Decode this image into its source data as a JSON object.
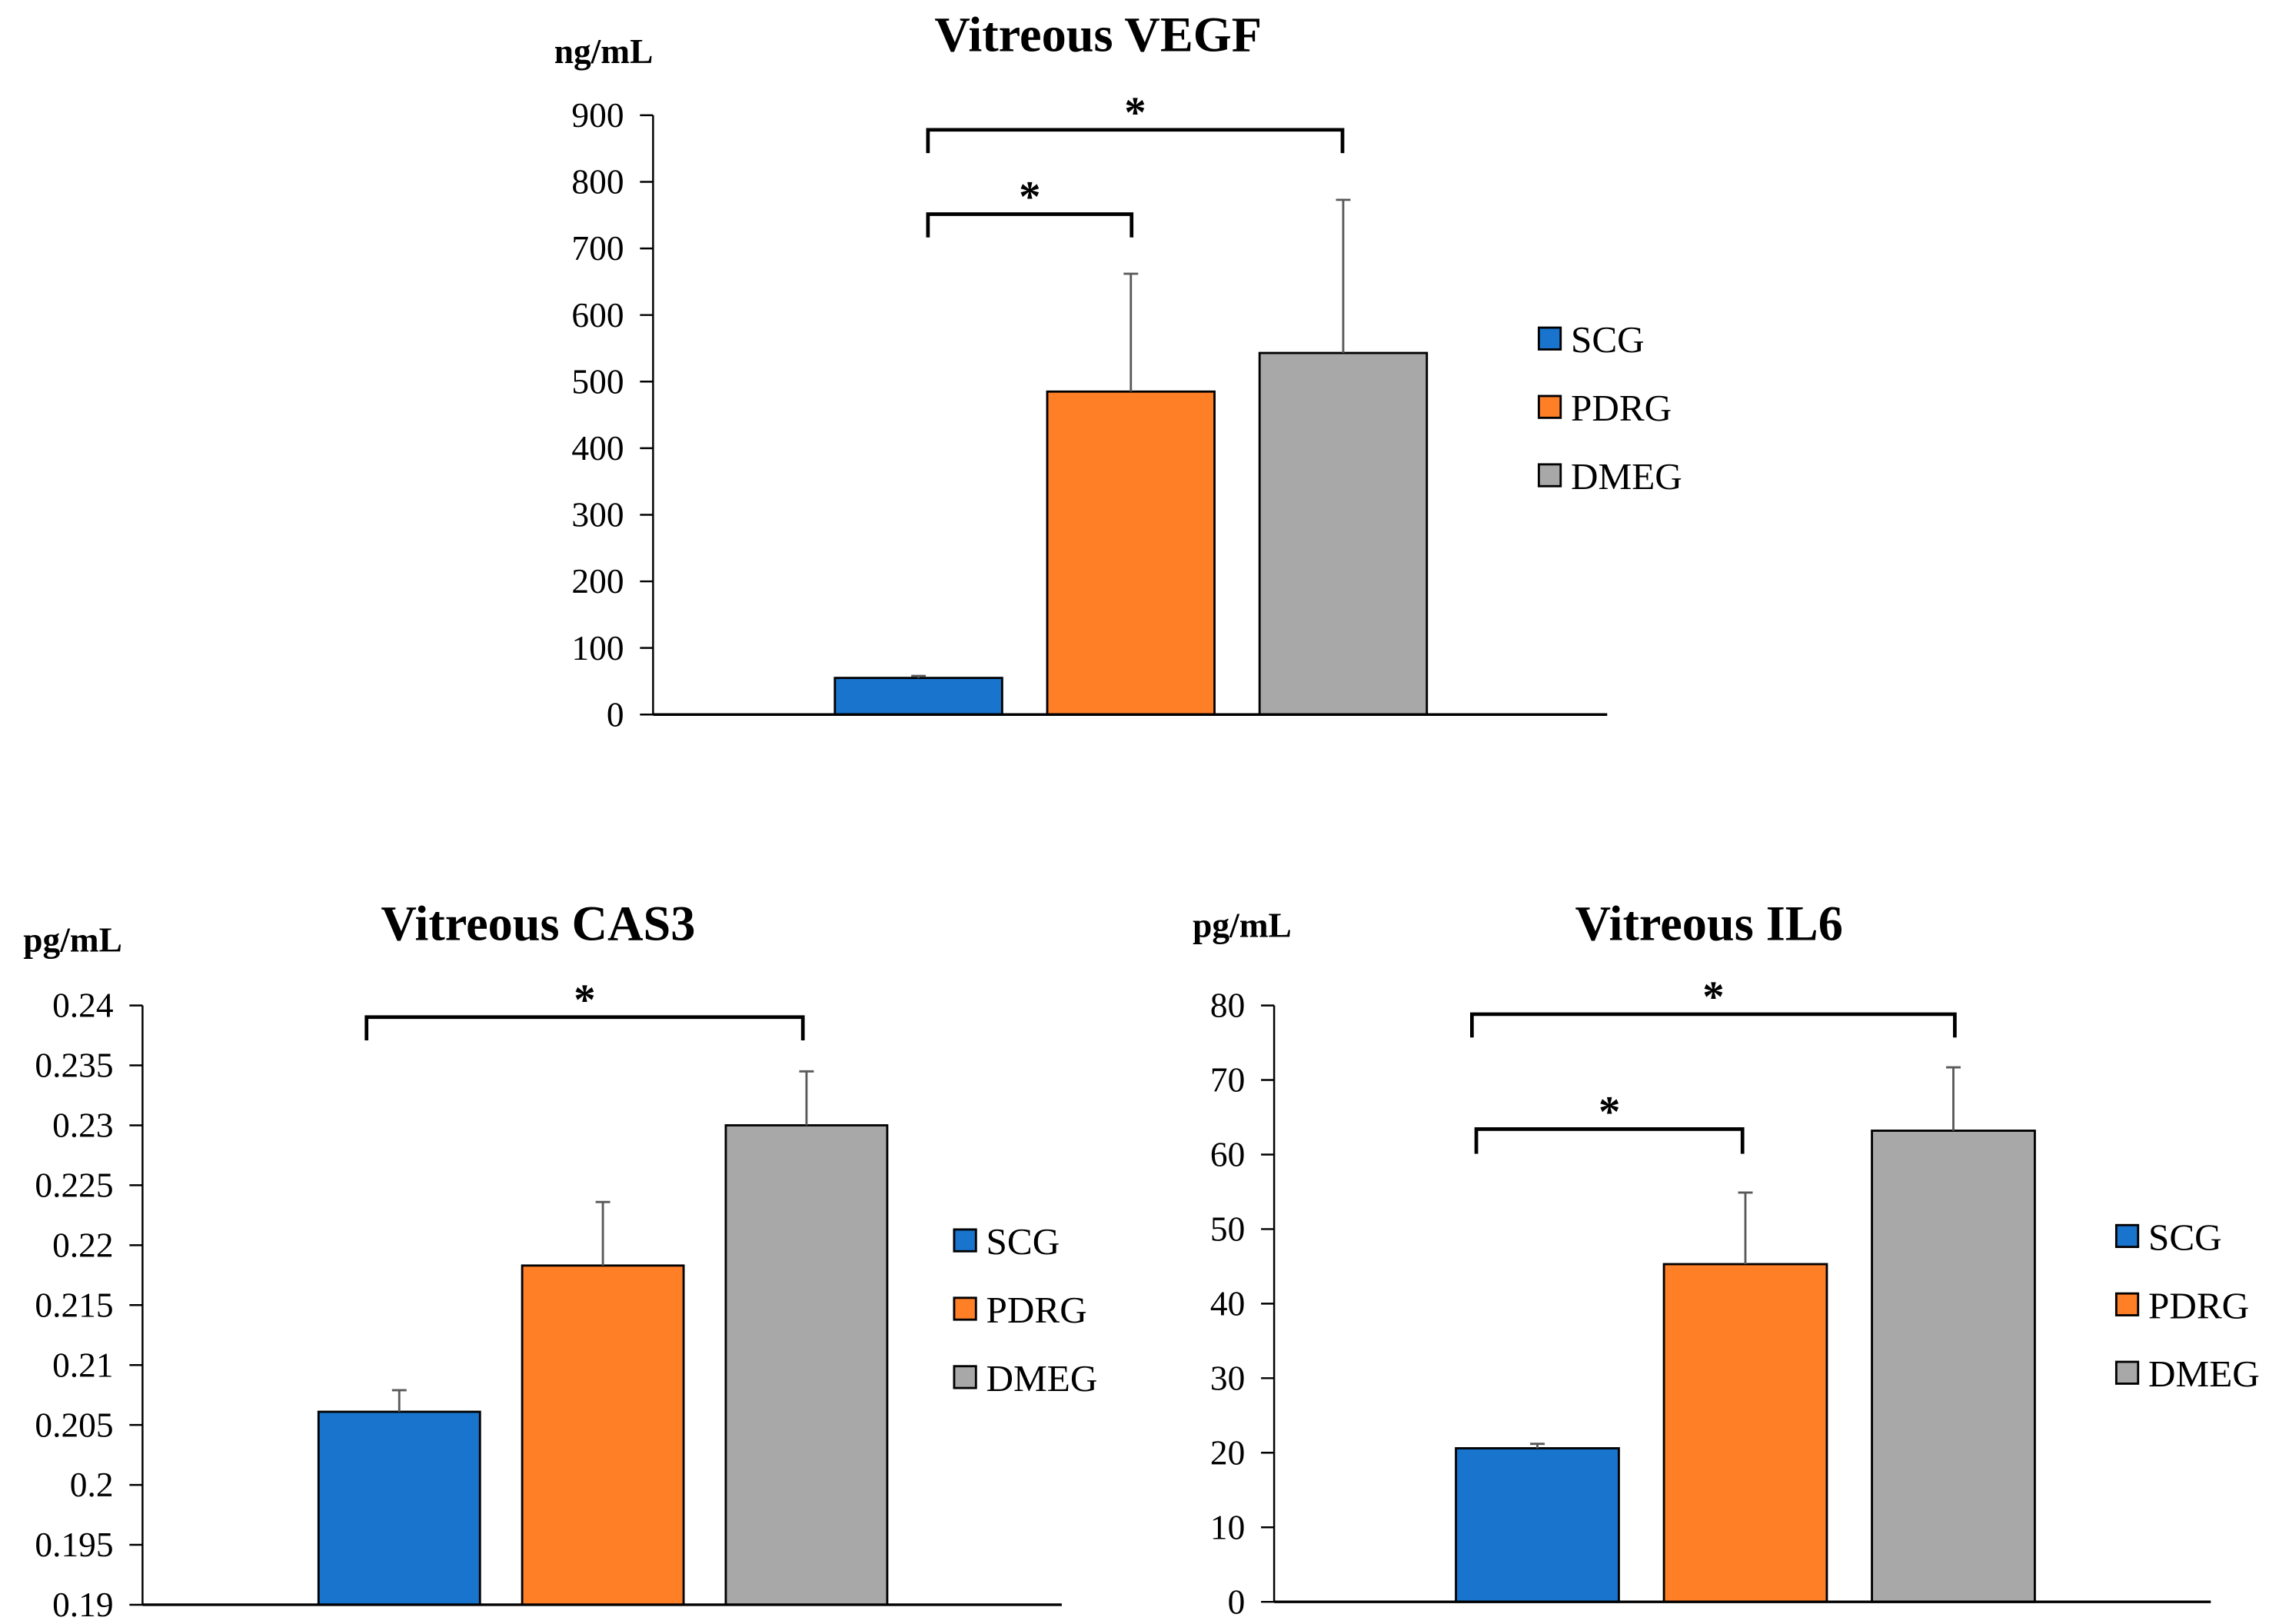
{
  "chart_data": [
    {
      "type": "bar",
      "title": "Vitreous VEGF",
      "ylabel": "ng/mL",
      "ylim": [
        0,
        900
      ],
      "yticks": [
        0,
        100,
        200,
        300,
        400,
        500,
        600,
        700,
        800,
        900
      ],
      "ytick_labels": [
        "0",
        "100",
        "200",
        "300",
        "400",
        "500",
        "600",
        "700",
        "800",
        "900"
      ],
      "categories": [
        "SCG",
        "PDRG",
        "DMEG"
      ],
      "values": [
        55,
        485,
        543
      ],
      "error_upper": [
        3,
        177,
        230
      ],
      "colors": [
        "#1874CD",
        "#FF7F27",
        "#A8A8A8"
      ],
      "legend": [
        "SCG",
        "PDRG",
        "DMEG"
      ],
      "legend_position": "right",
      "grid": false,
      "significance": [
        {
          "pair": [
            "SCG",
            "PDRG"
          ],
          "label": "*"
        },
        {
          "pair": [
            "SCG",
            "DMEG"
          ],
          "label": "*"
        }
      ]
    },
    {
      "type": "bar",
      "title": "Vitreous CAS3",
      "ylabel": "pg/mL",
      "ylim": [
        0.19,
        0.24
      ],
      "yticks": [
        0.19,
        0.195,
        0.2,
        0.205,
        0.21,
        0.215,
        0.22,
        0.225,
        0.23,
        0.235,
        0.24
      ],
      "ytick_labels": [
        "0.19",
        "0.195",
        "0.2",
        "0.205",
        "0.21",
        "0.215",
        "0.22",
        "0.225",
        "0.23",
        "0.235",
        "0.24"
      ],
      "categories": [
        "SCG",
        "PDRG",
        "DMEG"
      ],
      "values": [
        0.2061,
        0.2183,
        0.23
      ],
      "error_upper": [
        0.0018,
        0.0053,
        0.0045
      ],
      "colors": [
        "#1874CD",
        "#FF7F27",
        "#A8A8A8"
      ],
      "legend": [
        "SCG",
        "PDRG",
        "DMEG"
      ],
      "legend_position": "right",
      "grid": false,
      "significance": [
        {
          "pair": [
            "SCG",
            "DMEG"
          ],
          "label": "*"
        }
      ]
    },
    {
      "type": "bar",
      "title": "Vitreous IL6",
      "ylabel": "pg/mL",
      "ylim": [
        0,
        80
      ],
      "yticks": [
        0,
        10,
        20,
        30,
        40,
        50,
        60,
        70,
        80
      ],
      "ytick_labels": [
        "0",
        "10",
        "20",
        "30",
        "40",
        "50",
        "60",
        "70",
        "80"
      ],
      "categories": [
        "SCG",
        "PDRG",
        "DMEG"
      ],
      "values": [
        20.6,
        45.3,
        63.2
      ],
      "error_upper": [
        0.6,
        9.6,
        8.5
      ],
      "colors": [
        "#1874CD",
        "#FF7F27",
        "#A8A8A8"
      ],
      "legend": [
        "SCG",
        "PDRG",
        "DMEG"
      ],
      "legend_position": "right",
      "grid": false,
      "significance": [
        {
          "pair": [
            "SCG",
            "PDRG"
          ],
          "label": "*"
        },
        {
          "pair": [
            "SCG",
            "DMEG"
          ],
          "label": "*"
        }
      ]
    }
  ]
}
